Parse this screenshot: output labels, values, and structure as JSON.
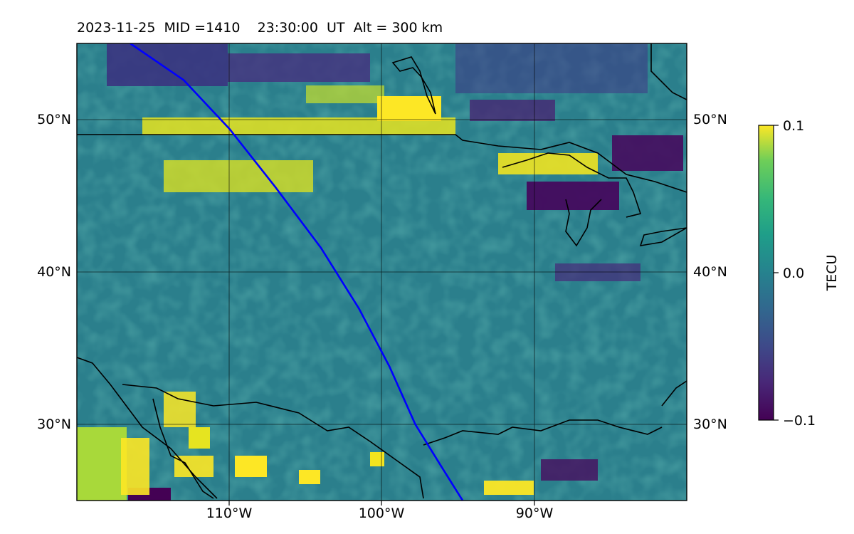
{
  "title": "2023-11-25  MID =1410    23:30:00  UT  Alt = 300 km",
  "map": {
    "lon_range": [
      -120,
      -80
    ],
    "lat_range": [
      25,
      55
    ],
    "lon_gridlines": [
      -110,
      -100,
      -90
    ],
    "lat_gridlines": [
      30,
      40,
      50
    ],
    "lon_tick_labels": [
      "110°W",
      "100°W",
      "90°W"
    ],
    "lat_tick_labels": [
      "30°N",
      "40°N",
      "50°N"
    ],
    "grid": true,
    "coastline_color": "#000000",
    "track_color": "#0000ff"
  },
  "track": {
    "points": [
      [
        -116.5,
        55
      ],
      [
        -113,
        52.6
      ],
      [
        -110,
        49.4
      ],
      [
        -107,
        45.6
      ],
      [
        -104,
        41.6
      ],
      [
        -101.5,
        37.6
      ],
      [
        -99.5,
        33.8
      ],
      [
        -97.8,
        30.0
      ],
      [
        -96.2,
        27.4
      ],
      [
        -94.7,
        25
      ]
    ]
  },
  "colorbar": {
    "label": "TECU",
    "min": -0.1,
    "max": 0.1,
    "ticks": [
      "0.1",
      "0.0",
      "−0.1"
    ],
    "colormap": "viridis"
  }
}
